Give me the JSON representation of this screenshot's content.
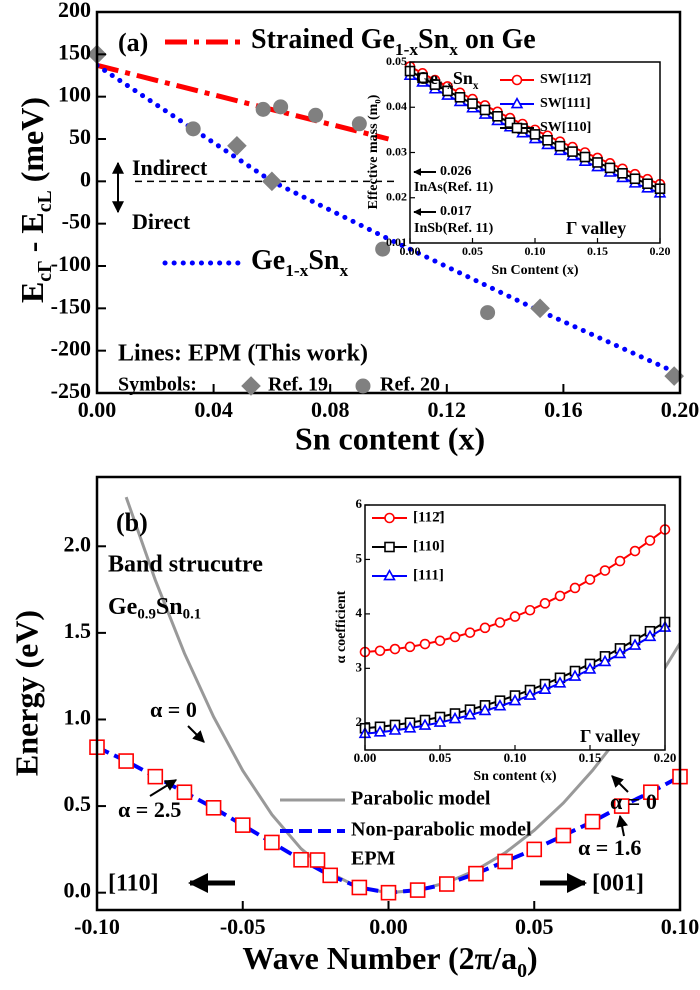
{
  "chart_data": [
    {
      "type": "line",
      "xlabel": "Sn content (x)",
      "ylabel": [
        "E",
        "cΓ",
        " - E",
        "cL",
        " (meV)"
      ],
      "xlim": [
        0,
        0.2
      ],
      "ylim": [
        -250,
        200
      ],
      "xticks": [
        {
          "value": 0,
          "label": "0.00"
        },
        0.04,
        0.08,
        0.12,
        0.16,
        {
          "value": 0.2,
          "label": "0.20"
        }
      ],
      "yticks": [
        -250,
        -200,
        -150,
        -100,
        -50,
        0,
        50,
        100,
        150,
        200
      ],
      "hline": 0,
      "series": [
        {
          "name": [
            "Strained Ge",
            "1-x",
            "Sn",
            "x",
            " on Ge"
          ],
          "color": "#ff0000",
          "line": "dashdot",
          "x": [
            0,
            0.1
          ],
          "values": [
            137,
            50
          ]
        },
        {
          "name": [
            "Ge",
            "1-x",
            "Sn",
            "x"
          ],
          "color": "#0000ff",
          "line": "dotted",
          "x": [
            0,
            0.06,
            0.1,
            0.15,
            0.2
          ],
          "values": [
            137,
            0,
            -68,
            -150,
            -228
          ]
        },
        {
          "name": "Ref. 19",
          "color": "#808080",
          "marker": "diamond",
          "filled": true,
          "x": [
            0,
            0.048,
            0.06,
            0.152,
            0.198
          ],
          "values": [
            150,
            42,
            0,
            -150,
            -230
          ]
        },
        {
          "name": "Ref. 20",
          "color": "#808080",
          "marker": "circle",
          "filled": true,
          "x": [
            0.033,
            0.057,
            0.063,
            0.075,
            0.09,
            0.098,
            0.134
          ],
          "values": [
            62,
            85,
            88,
            78,
            68,
            -80,
            -155
          ]
        }
      ],
      "annotations": {
        "panel": "(a)",
        "indirect": "Indirect",
        "direct": "Direct",
        "lines_note": "Lines: EPM (This work)",
        "symbols_note": "Symbols:"
      }
    },
    {
      "type": "line",
      "xlabel": "Sn Content (x)",
      "ylabel": [
        "Effective mass (m",
        "0",
        ")"
      ],
      "xlim": [
        0,
        0.2
      ],
      "ylim": [
        0.01,
        0.05
      ],
      "xticks": [
        {
          "value": 0,
          "label": "0.00"
        },
        0.05,
        {
          "value": 0.1,
          "label": "0.10"
        },
        0.15,
        {
          "value": 0.2,
          "label": "0.20"
        }
      ],
      "yticks": [
        0.01,
        0.02,
        0.03,
        0.04,
        0.05
      ],
      "x": [
        0,
        0.01,
        0.02,
        0.03,
        0.04,
        0.05,
        0.06,
        0.07,
        0.08,
        0.09,
        0.1,
        0.11,
        0.12,
        0.13,
        0.14,
        0.15,
        0.16,
        0.17,
        0.18,
        0.19,
        0.2
      ],
      "series": [
        {
          "name": "SW[112̄]",
          "color": "#ff0000",
          "line": "solid",
          "marker": "circle",
          "values": [
            0.049,
            0.0475,
            0.046,
            0.0446,
            0.0432,
            0.0418,
            0.0404,
            0.039,
            0.0376,
            0.0363,
            0.035,
            0.0337,
            0.0324,
            0.0312,
            0.03,
            0.0288,
            0.0276,
            0.0264,
            0.0252,
            0.0241,
            0.023
          ]
        },
        {
          "name": "SW[111]",
          "color": "#0000ff",
          "line": "solid",
          "marker": "triangle",
          "values": [
            0.047,
            0.0455,
            0.044,
            0.0426,
            0.0412,
            0.0398,
            0.0384,
            0.037,
            0.0356,
            0.0343,
            0.033,
            0.0317,
            0.0304,
            0.0292,
            0.028,
            0.0268,
            0.0256,
            0.0244,
            0.0232,
            0.0221,
            0.021
          ]
        },
        {
          "name": "SW[110]",
          "color": "#000000",
          "line": "solid",
          "marker": "square",
          "values": [
            0.048,
            0.0465,
            0.045,
            0.0436,
            0.0422,
            0.0408,
            0.0394,
            0.038,
            0.0366,
            0.0353,
            0.034,
            0.0327,
            0.0314,
            0.0302,
            0.029,
            0.0278,
            0.0266,
            0.0254,
            0.0242,
            0.0231,
            0.022
          ]
        }
      ],
      "annotations": {
        "material": [
          "Ge",
          "1-x",
          "Sn",
          "x"
        ],
        "valley": "Γ valley",
        "inas_value": "0.026",
        "inas": "InAs(Ref. 11)",
        "insb_value": "0.017",
        "insb": "InSb(Ref. 11)"
      }
    },
    {
      "type": "line",
      "xlabel": [
        "Wave Number (2π/a",
        "0",
        ")"
      ],
      "ylabel": "Energy (eV)",
      "xlim": [
        -0.1,
        0.1
      ],
      "ylim": [
        -0.1,
        2.4
      ],
      "xticks": [
        {
          "value": -0.1,
          "label": "-0.10"
        },
        -0.05,
        {
          "value": 0,
          "label": "0.00"
        },
        0.05,
        {
          "value": 0.1,
          "label": "0.10"
        }
      ],
      "yticks": [
        {
          "value": 0,
          "label": "0.0"
        },
        0.5,
        {
          "value": 1,
          "label": "1.0"
        },
        1.5,
        {
          "value": 2,
          "label": "2.0"
        }
      ],
      "x": [
        -0.1,
        -0.09,
        -0.08,
        -0.07,
        -0.06,
        -0.05,
        -0.04,
        -0.03,
        -0.02,
        -0.01,
        0,
        0.01,
        0.02,
        0.03,
        0.04,
        0.05,
        0.06,
        0.07,
        0.08,
        0.09,
        0.1
      ],
      "series": [
        {
          "name": "Parabolic model",
          "color": "#999999",
          "line": "solid",
          "x": [
            -0.09,
            -0.08,
            -0.07,
            -0.06,
            -0.05,
            -0.04,
            -0.03,
            -0.02,
            -0.01,
            0,
            0.01,
            0.02,
            0.03,
            0.04,
            0.05,
            0.06,
            0.07,
            0.08,
            0.09,
            0.1
          ],
          "values": [
            2.284,
            1.805,
            1.382,
            1.015,
            0.705,
            0.451,
            0.254,
            0.113,
            0.028,
            0,
            0.014,
            0.058,
            0.13,
            0.23,
            0.36,
            0.518,
            0.706,
            0.922,
            1.166,
            1.44
          ]
        },
        {
          "name": "Non-parabolic model",
          "color": "#0000ff",
          "line": "dashed",
          "values": [
            0.84,
            0.76,
            0.67,
            0.58,
            0.49,
            0.39,
            0.29,
            0.19,
            0.1,
            0.03,
            0,
            0.015,
            0.05,
            0.11,
            0.18,
            0.25,
            0.33,
            0.41,
            0.5,
            0.58,
            0.67
          ]
        },
        {
          "name": "EPM",
          "color": "#ff0000",
          "marker": "square",
          "values": [
            0.84,
            0.76,
            0.67,
            0.58,
            0.49,
            0.39,
            0.29,
            0.19,
            0.1,
            0.03,
            0,
            0.015,
            0.05,
            0.11,
            0.18,
            0.25,
            0.33,
            0.41,
            0.5,
            0.58,
            0.67
          ]
        }
      ],
      "annotations": {
        "panel": "(b)",
        "title": "Band strucutre",
        "material": [
          "Ge",
          "0.9",
          "Sn",
          "0.1"
        ],
        "alpha_left": "α = 0",
        "alpha_mid": "α = 2.5",
        "alpha_right": "α = 0",
        "alpha_right2": "α = 1.6",
        "dir_left": "[110]",
        "dir_right": "[001]"
      }
    },
    {
      "type": "line",
      "xlabel": "Sn content (x)",
      "ylabel": "α coefficient",
      "xlim": [
        0,
        0.2
      ],
      "ylim": [
        1.5,
        6
      ],
      "xticks": [
        {
          "value": 0,
          "label": "0.00"
        },
        0.05,
        {
          "value": 0.1,
          "label": "0.10"
        },
        0.15,
        {
          "value": 0.2,
          "label": "0.20"
        }
      ],
      "yticks": [
        2,
        3,
        4,
        5,
        6
      ],
      "x": [
        0,
        0.01,
        0.02,
        0.03,
        0.04,
        0.05,
        0.06,
        0.07,
        0.08,
        0.09,
        0.1,
        0.11,
        0.12,
        0.13,
        0.14,
        0.15,
        0.16,
        0.17,
        0.18,
        0.19,
        0.2
      ],
      "series": [
        {
          "name": "[112̄]",
          "color": "#ff0000",
          "line": "solid",
          "marker": "circle",
          "values": [
            3.3,
            3.322,
            3.354,
            3.395,
            3.446,
            3.506,
            3.576,
            3.655,
            3.744,
            3.842,
            3.95,
            4.067,
            4.194,
            4.33,
            4.476,
            4.631,
            4.796,
            4.97,
            5.154,
            5.347,
            5.55
          ]
        },
        {
          "name": "[110]",
          "color": "#000000",
          "line": "solid",
          "marker": "square",
          "values": [
            1.9,
            1.926,
            1.96,
            2.001,
            2.05,
            2.106,
            2.17,
            2.241,
            2.32,
            2.406,
            2.5,
            2.601,
            2.71,
            2.826,
            2.95,
            3.081,
            3.22,
            3.366,
            3.52,
            3.681,
            3.85
          ]
        },
        {
          "name": "[111]",
          "color": "#0000ff",
          "line": "solid",
          "marker": "triangle",
          "values": [
            1.8,
            1.826,
            1.86,
            1.901,
            1.95,
            2.006,
            2.07,
            2.141,
            2.22,
            2.306,
            2.4,
            2.501,
            2.61,
            2.726,
            2.85,
            2.981,
            3.12,
            3.266,
            3.42,
            3.581,
            3.75
          ]
        }
      ],
      "annotations": {
        "valley": "Γ valley"
      }
    }
  ]
}
